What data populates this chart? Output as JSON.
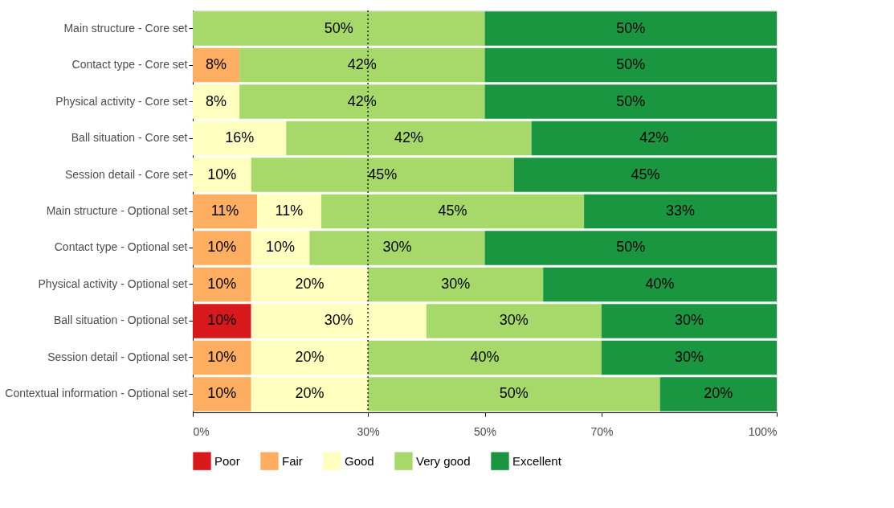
{
  "chart_data": {
    "type": "bar",
    "orientation": "horizontal",
    "stacked": true,
    "categories": [
      "Main structure - Core set",
      "Contact type - Core set",
      "Physical activity - Core set",
      "Ball situation - Core set",
      "Session detail - Core set",
      "Main structure - Optional set",
      "Contact type - Optional set",
      "Physical activity - Optional set",
      "Ball situation - Optional set",
      "Session detail - Optional set",
      "Contextual information - Optional set"
    ],
    "series": [
      {
        "name": "Poor",
        "color": "#d7191c",
        "values": [
          null,
          null,
          null,
          null,
          null,
          null,
          null,
          null,
          10,
          null,
          null
        ],
        "value_labels": [
          null,
          null,
          null,
          null,
          null,
          null,
          null,
          null,
          "10%",
          null,
          null
        ]
      },
      {
        "name": "Fair",
        "color": "#fdae61",
        "values": [
          null,
          8,
          null,
          null,
          null,
          11,
          10,
          10,
          null,
          10,
          10
        ],
        "value_labels": [
          null,
          "8%",
          null,
          null,
          null,
          "11%",
          "10%",
          "10%",
          null,
          "10%",
          "10%"
        ]
      },
      {
        "name": "Good",
        "color": "#ffffbf",
        "values": [
          null,
          null,
          8,
          16,
          10,
          11,
          10,
          20,
          30,
          20,
          20
        ],
        "value_labels": [
          null,
          null,
          "8%",
          "16%",
          "10%",
          "11%",
          "10%",
          "20%",
          "30%",
          "20%",
          "20%"
        ]
      },
      {
        "name": "Very good",
        "color": "#a6d96a",
        "values": [
          50,
          42,
          42,
          42,
          45,
          45,
          30,
          30,
          30,
          40,
          50
        ],
        "value_labels": [
          "50%",
          "42%",
          "42%",
          "42%",
          "45%",
          "45%",
          "30%",
          "30%",
          "30%",
          "40%",
          "50%"
        ]
      },
      {
        "name": "Excellent",
        "color": "#1a9641",
        "values": [
          50,
          50,
          50,
          42,
          45,
          33,
          50,
          40,
          30,
          30,
          20
        ],
        "value_labels": [
          "50%",
          "50%",
          "50%",
          "42%",
          "45%",
          "33%",
          "50%",
          "40%",
          "30%",
          "30%",
          "20%"
        ]
      }
    ],
    "xlim": [
      0,
      100
    ],
    "xticks": [
      {
        "value": 0,
        "label": "0%"
      },
      {
        "value": 30,
        "label": "30%"
      },
      {
        "value": 50,
        "label": "50%"
      },
      {
        "value": 70,
        "label": "70%"
      },
      {
        "value": 100,
        "label": "100%"
      }
    ],
    "ref_lines": [
      {
        "axis": "x",
        "value": 30,
        "line_style": "dotted"
      }
    ],
    "grid": false,
    "legend": "bottom"
  }
}
